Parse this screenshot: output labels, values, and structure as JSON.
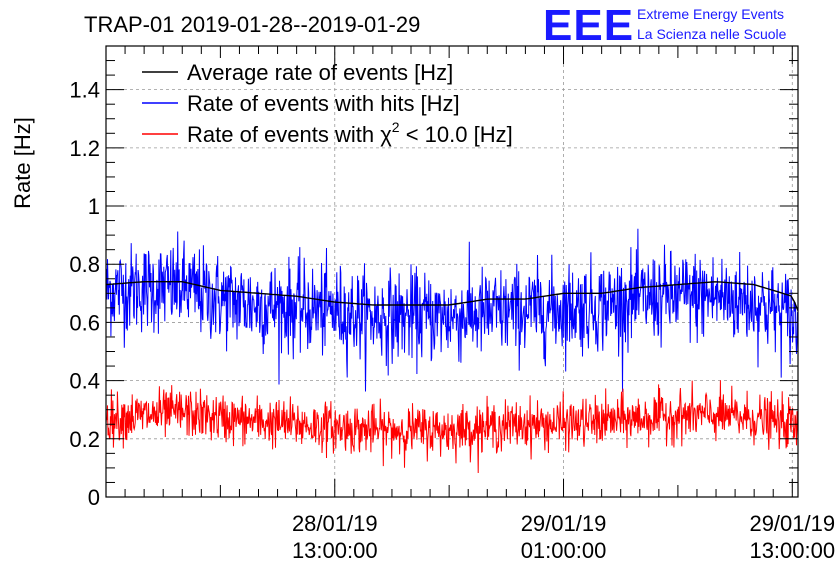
{
  "chart_data": {
    "type": "line",
    "title": "TRAP-01 2019-01-28--2019-01-29",
    "ylabel": "Rate [Hz]",
    "xlabel": "",
    "ylim": [
      0,
      1.55
    ],
    "yticks": [
      0,
      0.2,
      0.4,
      0.6,
      0.8,
      1,
      1.2,
      1.4
    ],
    "ytick_labels": [
      "0",
      "0.2",
      "0.4",
      "0.6",
      "0.8",
      "1",
      "1.2",
      "1.4"
    ],
    "xlim_hours": [
      0,
      36.3
    ],
    "xticks": [
      {
        "hour": 12.0,
        "date": "28/01/19",
        "time": "13:00:00"
      },
      {
        "hour": 24.0,
        "date": "29/01/19",
        "time": "01:00:00"
      },
      {
        "hour": 36.0,
        "date": "29/01/19",
        "time": "13:00:00"
      }
    ],
    "grid": true,
    "legend_position": "top-left",
    "series": [
      {
        "name": "Average rate of events [Hz]",
        "color": "#000000",
        "x_hours": [
          0,
          2,
          4,
          6,
          8,
          10,
          12,
          14,
          16,
          18,
          20,
          22,
          24,
          26,
          28,
          30,
          32,
          34,
          36,
          36.3
        ],
        "values": [
          0.73,
          0.74,
          0.74,
          0.71,
          0.7,
          0.69,
          0.67,
          0.66,
          0.66,
          0.66,
          0.68,
          0.68,
          0.7,
          0.7,
          0.72,
          0.73,
          0.74,
          0.73,
          0.69,
          0.64
        ]
      },
      {
        "name": "Rate of events with hits [Hz]",
        "color": "#0000ff",
        "x_hours": [
          0,
          2,
          4,
          6,
          8,
          10,
          12,
          14,
          16,
          18,
          20,
          22,
          24,
          26,
          28,
          30,
          32,
          34,
          36,
          36.3
        ],
        "values": [
          0.71,
          0.72,
          0.72,
          0.68,
          0.66,
          0.65,
          0.64,
          0.62,
          0.62,
          0.62,
          0.63,
          0.64,
          0.65,
          0.66,
          0.68,
          0.69,
          0.69,
          0.67,
          0.62,
          0.57
        ],
        "noise_amplitude": 0.14
      },
      {
        "name": "Rate of events with χ² < 10.0 [Hz]",
        "legend_prefix": "Rate of events with ",
        "legend_chi": "χ",
        "legend_sup": "2",
        "legend_suffix": " < 10.0 [Hz]",
        "color": "#ff0000",
        "x_hours": [
          0,
          2,
          4,
          6,
          8,
          10,
          12,
          14,
          16,
          18,
          20,
          22,
          24,
          26,
          28,
          30,
          32,
          34,
          36,
          36.3
        ],
        "values": [
          0.27,
          0.28,
          0.29,
          0.27,
          0.26,
          0.25,
          0.24,
          0.23,
          0.23,
          0.23,
          0.24,
          0.25,
          0.25,
          0.26,
          0.27,
          0.28,
          0.28,
          0.27,
          0.25,
          0.22
        ],
        "noise_amplitude": 0.075
      }
    ]
  },
  "logo": {
    "letters": "EEE",
    "line1": "Extreme Energy Events",
    "line2": "La Scienza nelle Scuole"
  }
}
